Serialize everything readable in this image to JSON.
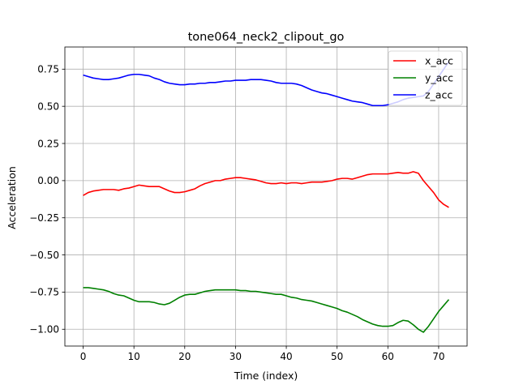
{
  "chart_data": {
    "type": "line",
    "title": "tone064_neck2_clipout_go",
    "xlabel": "Time (index)",
    "ylabel": "Acceleration",
    "xlim": [
      -3.6,
      75.6
    ],
    "ylim": [
      -1.113,
      0.899
    ],
    "xticks": [
      0,
      10,
      20,
      30,
      40,
      50,
      60,
      70
    ],
    "yticks": [
      -1.0,
      -0.75,
      -0.5,
      -0.25,
      0.0,
      0.25,
      0.5,
      0.75
    ],
    "xtick_labels": [
      "0",
      "10",
      "20",
      "30",
      "40",
      "50",
      "60",
      "70"
    ],
    "ytick_labels": [
      "−1.00",
      "−0.75",
      "−0.50",
      "−0.25",
      "0.00",
      "0.25",
      "0.50",
      "0.75"
    ],
    "grid": true,
    "legend_position": "top-right",
    "series": [
      {
        "name": "x_acc",
        "color": "#ff0000",
        "points": [
          [
            0,
            -0.1
          ],
          [
            1,
            -0.08
          ],
          [
            2,
            -0.07
          ],
          [
            3,
            -0.065
          ],
          [
            4,
            -0.06
          ],
          [
            5,
            -0.06
          ],
          [
            6,
            -0.06
          ],
          [
            7,
            -0.065
          ],
          [
            8,
            -0.055
          ],
          [
            9,
            -0.05
          ],
          [
            10,
            -0.04
          ],
          [
            11,
            -0.03
          ],
          [
            12,
            -0.035
          ],
          [
            13,
            -0.04
          ],
          [
            14,
            -0.04
          ],
          [
            15,
            -0.04
          ],
          [
            16,
            -0.055
          ],
          [
            17,
            -0.07
          ],
          [
            18,
            -0.08
          ],
          [
            19,
            -0.08
          ],
          [
            20,
            -0.075
          ],
          [
            21,
            -0.065
          ],
          [
            22,
            -0.055
          ],
          [
            23,
            -0.035
          ],
          [
            24,
            -0.02
          ],
          [
            25,
            -0.01
          ],
          [
            26,
            0.0
          ],
          [
            27,
            0.0
          ],
          [
            28,
            0.01
          ],
          [
            29,
            0.015
          ],
          [
            30,
            0.02
          ],
          [
            31,
            0.02
          ],
          [
            32,
            0.015
          ],
          [
            33,
            0.01
          ],
          [
            34,
            0.005
          ],
          [
            35,
            -0.005
          ],
          [
            36,
            -0.015
          ],
          [
            37,
            -0.02
          ],
          [
            38,
            -0.02
          ],
          [
            39,
            -0.015
          ],
          [
            40,
            -0.02
          ],
          [
            41,
            -0.015
          ],
          [
            42,
            -0.015
          ],
          [
            43,
            -0.02
          ],
          [
            44,
            -0.015
          ],
          [
            45,
            -0.01
          ],
          [
            46,
            -0.01
          ],
          [
            47,
            -0.01
          ],
          [
            48,
            -0.005
          ],
          [
            49,
            0.0
          ],
          [
            50,
            0.01
          ],
          [
            51,
            0.015
          ],
          [
            52,
            0.015
          ],
          [
            53,
            0.01
          ],
          [
            54,
            0.02
          ],
          [
            55,
            0.03
          ],
          [
            56,
            0.04
          ],
          [
            57,
            0.045
          ],
          [
            58,
            0.045
          ],
          [
            59,
            0.045
          ],
          [
            60,
            0.045
          ],
          [
            61,
            0.05
          ],
          [
            62,
            0.055
          ],
          [
            63,
            0.05
          ],
          [
            64,
            0.05
          ],
          [
            65,
            0.06
          ],
          [
            66,
            0.05
          ],
          [
            67,
            0.0
          ],
          [
            68,
            -0.04
          ],
          [
            69,
            -0.08
          ],
          [
            70,
            -0.13
          ],
          [
            71,
            -0.16
          ],
          [
            72,
            -0.18
          ]
        ]
      },
      {
        "name": "y_acc",
        "color": "#008000",
        "points": [
          [
            0,
            -0.72
          ],
          [
            1,
            -0.72
          ],
          [
            2,
            -0.725
          ],
          [
            3,
            -0.73
          ],
          [
            4,
            -0.735
          ],
          [
            5,
            -0.745
          ],
          [
            6,
            -0.76
          ],
          [
            7,
            -0.77
          ],
          [
            8,
            -0.775
          ],
          [
            9,
            -0.79
          ],
          [
            10,
            -0.805
          ],
          [
            11,
            -0.815
          ],
          [
            12,
            -0.815
          ],
          [
            13,
            -0.815
          ],
          [
            14,
            -0.82
          ],
          [
            15,
            -0.83
          ],
          [
            16,
            -0.835
          ],
          [
            17,
            -0.825
          ],
          [
            18,
            -0.805
          ],
          [
            19,
            -0.785
          ],
          [
            20,
            -0.77
          ],
          [
            21,
            -0.765
          ],
          [
            22,
            -0.765
          ],
          [
            23,
            -0.755
          ],
          [
            24,
            -0.745
          ],
          [
            25,
            -0.74
          ],
          [
            26,
            -0.735
          ],
          [
            27,
            -0.735
          ],
          [
            28,
            -0.735
          ],
          [
            29,
            -0.735
          ],
          [
            30,
            -0.735
          ],
          [
            31,
            -0.74
          ],
          [
            32,
            -0.74
          ],
          [
            33,
            -0.745
          ],
          [
            34,
            -0.745
          ],
          [
            35,
            -0.75
          ],
          [
            36,
            -0.755
          ],
          [
            37,
            -0.76
          ],
          [
            38,
            -0.765
          ],
          [
            39,
            -0.765
          ],
          [
            40,
            -0.775
          ],
          [
            41,
            -0.785
          ],
          [
            42,
            -0.79
          ],
          [
            43,
            -0.8
          ],
          [
            44,
            -0.805
          ],
          [
            45,
            -0.81
          ],
          [
            46,
            -0.82
          ],
          [
            47,
            -0.83
          ],
          [
            48,
            -0.84
          ],
          [
            49,
            -0.85
          ],
          [
            50,
            -0.86
          ],
          [
            51,
            -0.875
          ],
          [
            52,
            -0.885
          ],
          [
            53,
            -0.9
          ],
          [
            54,
            -0.915
          ],
          [
            55,
            -0.935
          ],
          [
            56,
            -0.95
          ],
          [
            57,
            -0.965
          ],
          [
            58,
            -0.975
          ],
          [
            59,
            -0.98
          ],
          [
            60,
            -0.98
          ],
          [
            61,
            -0.975
          ],
          [
            62,
            -0.955
          ],
          [
            63,
            -0.94
          ],
          [
            64,
            -0.945
          ],
          [
            65,
            -0.97
          ],
          [
            66,
            -1.0
          ],
          [
            67,
            -1.02
          ],
          [
            68,
            -0.98
          ],
          [
            69,
            -0.93
          ],
          [
            70,
            -0.88
          ],
          [
            71,
            -0.84
          ],
          [
            72,
            -0.8
          ]
        ]
      },
      {
        "name": "z_acc",
        "color": "#0000ff",
        "points": [
          [
            0,
            0.71
          ],
          [
            1,
            0.7
          ],
          [
            2,
            0.69
          ],
          [
            3,
            0.685
          ],
          [
            4,
            0.68
          ],
          [
            5,
            0.68
          ],
          [
            6,
            0.685
          ],
          [
            7,
            0.69
          ],
          [
            8,
            0.7
          ],
          [
            9,
            0.71
          ],
          [
            10,
            0.715
          ],
          [
            11,
            0.715
          ],
          [
            12,
            0.71
          ],
          [
            13,
            0.705
          ],
          [
            14,
            0.69
          ],
          [
            15,
            0.68
          ],
          [
            16,
            0.665
          ],
          [
            17,
            0.655
          ],
          [
            18,
            0.65
          ],
          [
            19,
            0.645
          ],
          [
            20,
            0.645
          ],
          [
            21,
            0.65
          ],
          [
            22,
            0.65
          ],
          [
            23,
            0.655
          ],
          [
            24,
            0.655
          ],
          [
            25,
            0.66
          ],
          [
            26,
            0.66
          ],
          [
            27,
            0.665
          ],
          [
            28,
            0.67
          ],
          [
            29,
            0.67
          ],
          [
            30,
            0.675
          ],
          [
            31,
            0.675
          ],
          [
            32,
            0.675
          ],
          [
            33,
            0.68
          ],
          [
            34,
            0.68
          ],
          [
            35,
            0.68
          ],
          [
            36,
            0.675
          ],
          [
            37,
            0.67
          ],
          [
            38,
            0.66
          ],
          [
            39,
            0.655
          ],
          [
            40,
            0.655
          ],
          [
            41,
            0.655
          ],
          [
            42,
            0.65
          ],
          [
            43,
            0.64
          ],
          [
            44,
            0.625
          ],
          [
            45,
            0.61
          ],
          [
            46,
            0.6
          ],
          [
            47,
            0.59
          ],
          [
            48,
            0.585
          ],
          [
            49,
            0.575
          ],
          [
            50,
            0.565
          ],
          [
            51,
            0.555
          ],
          [
            52,
            0.545
          ],
          [
            53,
            0.535
          ],
          [
            54,
            0.53
          ],
          [
            55,
            0.525
          ],
          [
            56,
            0.515
          ],
          [
            57,
            0.505
          ],
          [
            58,
            0.505
          ],
          [
            59,
            0.505
          ],
          [
            60,
            0.51
          ],
          [
            61,
            0.52
          ],
          [
            62,
            0.53
          ],
          [
            63,
            0.545
          ],
          [
            64,
            0.555
          ],
          [
            65,
            0.56
          ],
          [
            66,
            0.565
          ],
          [
            67,
            0.57
          ],
          [
            68,
            0.6
          ],
          [
            69,
            0.65
          ],
          [
            70,
            0.7
          ],
          [
            71,
            0.75
          ],
          [
            72,
            0.8
          ]
        ]
      }
    ]
  }
}
